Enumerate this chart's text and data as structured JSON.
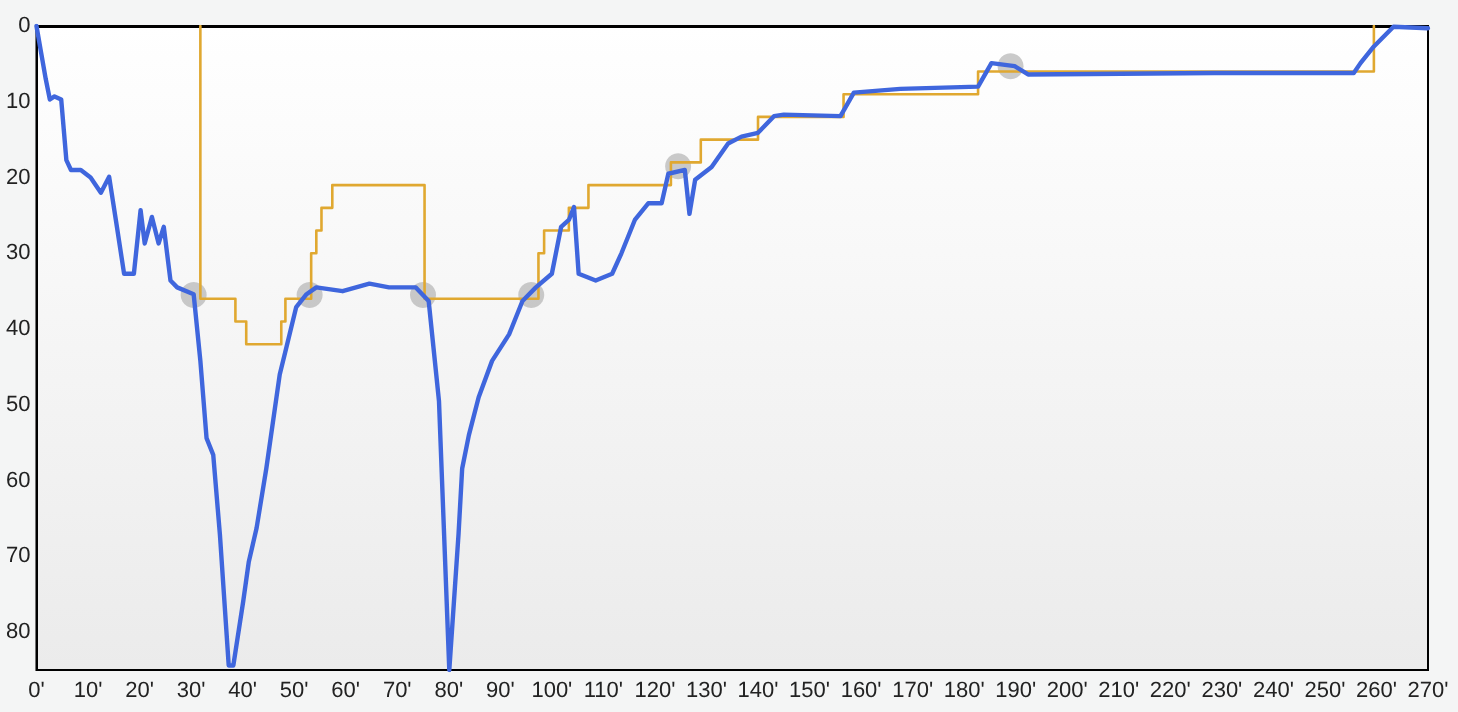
{
  "chart_data": {
    "type": "line",
    "grid": false,
    "marker": "none",
    "line_style": "solid",
    "xlim": [
      0,
      270
    ],
    "ylim": [
      85,
      0
    ],
    "xticks": [
      {
        "value": 0,
        "label": "0'"
      },
      {
        "value": 10,
        "label": "10'"
      },
      {
        "value": 20,
        "label": "20'"
      },
      {
        "value": 30,
        "label": "30'"
      },
      {
        "value": 40,
        "label": "40'"
      },
      {
        "value": 50,
        "label": "50'"
      },
      {
        "value": 60,
        "label": "60'"
      },
      {
        "value": 70,
        "label": "70'"
      },
      {
        "value": 80,
        "label": "80'"
      },
      {
        "value": 90,
        "label": "90'"
      },
      {
        "value": 100,
        "label": "100'"
      },
      {
        "value": 110,
        "label": "110'"
      },
      {
        "value": 120,
        "label": "120'"
      },
      {
        "value": 130,
        "label": "130'"
      },
      {
        "value": 140,
        "label": "140'"
      },
      {
        "value": 150,
        "label": "150'"
      },
      {
        "value": 160,
        "label": "160'"
      },
      {
        "value": 170,
        "label": "170'"
      },
      {
        "value": 180,
        "label": "180'"
      },
      {
        "value": 190,
        "label": "190'"
      },
      {
        "value": 200,
        "label": "200'"
      },
      {
        "value": 210,
        "label": "210'"
      },
      {
        "value": 220,
        "label": "220'"
      },
      {
        "value": 230,
        "label": "230'"
      },
      {
        "value": 240,
        "label": "240'"
      },
      {
        "value": 250,
        "label": "250'"
      },
      {
        "value": 260,
        "label": "260'"
      },
      {
        "value": 270,
        "label": "270'"
      }
    ],
    "yticks": [
      0,
      10,
      20,
      30,
      40,
      50,
      60,
      70,
      80
    ],
    "series": [
      {
        "type": "step",
        "color": "#e0a830",
        "x": [
          31.8,
          31.8,
          38.6,
          40.7,
          47.5,
          48.3,
          53.3,
          54.3,
          55.3,
          57.4,
          75.3,
          97.4,
          98.5,
          103.3,
          107.1,
          123.1,
          128.9,
          140,
          156.6,
          182.7,
          259.5
        ],
        "values": [
          0,
          36,
          39,
          42,
          39,
          36,
          30,
          27,
          24,
          21,
          36,
          30,
          27,
          24,
          21,
          18,
          15,
          12,
          9,
          6,
          0
        ]
      },
      {
        "color": "#3f66dd",
        "x": [
          0,
          0.9,
          1.8,
          2.6,
          3.5,
          4.8,
          5.8,
          6.7,
          8.6,
          10.5,
          12.5,
          14.1,
          15.4,
          17,
          18.9,
          20.2,
          21,
          22.4,
          23.7,
          24.7,
          26,
          27.3,
          30.5,
          31.8,
          33,
          34.3,
          35.6,
          37.3,
          38.2,
          40.1,
          41.2,
          42.7,
          44.6,
          47.2,
          48.5,
          50.4,
          52.4,
          54.3,
          59.4,
          64.6,
          68.4,
          73.6,
          76.1,
          78.1,
          80.1,
          81.9,
          82.6,
          83.9,
          85.8,
          88.4,
          91.7,
          94.3,
          96.9,
          100,
          101.8,
          103.3,
          104.3,
          105.2,
          108.5,
          111.7,
          113.5,
          116.1,
          118.7,
          121.3,
          122.6,
          125.8,
          126.7,
          127.8,
          131,
          134.2,
          136.8,
          140,
          143.1,
          145,
          156,
          158.6,
          167.6,
          182.7,
          185.3,
          189.8,
          192.4,
          228.5,
          255.6,
          256.9,
          259.5,
          263.3,
          270
        ],
        "values": [
          0,
          3.5,
          7,
          9.7,
          9.3,
          9.7,
          17.7,
          19,
          19,
          20,
          22,
          19.9,
          25.6,
          32.7,
          32.7,
          24.3,
          28.7,
          25.2,
          28.7,
          26.5,
          33.6,
          34.5,
          35.4,
          44.2,
          54.4,
          56.6,
          67.2,
          84.4,
          84.4,
          76,
          70.7,
          66.3,
          58.4,
          46,
          42.4,
          37.1,
          35.4,
          34.5,
          35,
          34,
          34.5,
          34.5,
          36.3,
          49.5,
          85,
          67,
          58.4,
          54,
          49,
          44.2,
          40.7,
          36.3,
          34.5,
          32.7,
          26.5,
          25.6,
          23.9,
          32.7,
          33.6,
          32.7,
          30,
          25.6,
          23.4,
          23.4,
          19.5,
          19,
          24.8,
          20.3,
          18.6,
          15.5,
          14.6,
          14.1,
          11.9,
          11.7,
          11.9,
          8.8,
          8.3,
          8,
          4.9,
          5.3,
          6.4,
          6.2,
          6.2,
          4.9,
          2.7,
          0.1,
          0.3
        ]
      },
      {
        "type": "scatter",
        "color": "#b4b4b4",
        "marker": "circle",
        "x": [
          30.5,
          53,
          75,
          96,
          124.5,
          189
        ],
        "values": [
          35.5,
          35.5,
          35.5,
          35.5,
          18.5,
          5.3
        ]
      }
    ]
  }
}
